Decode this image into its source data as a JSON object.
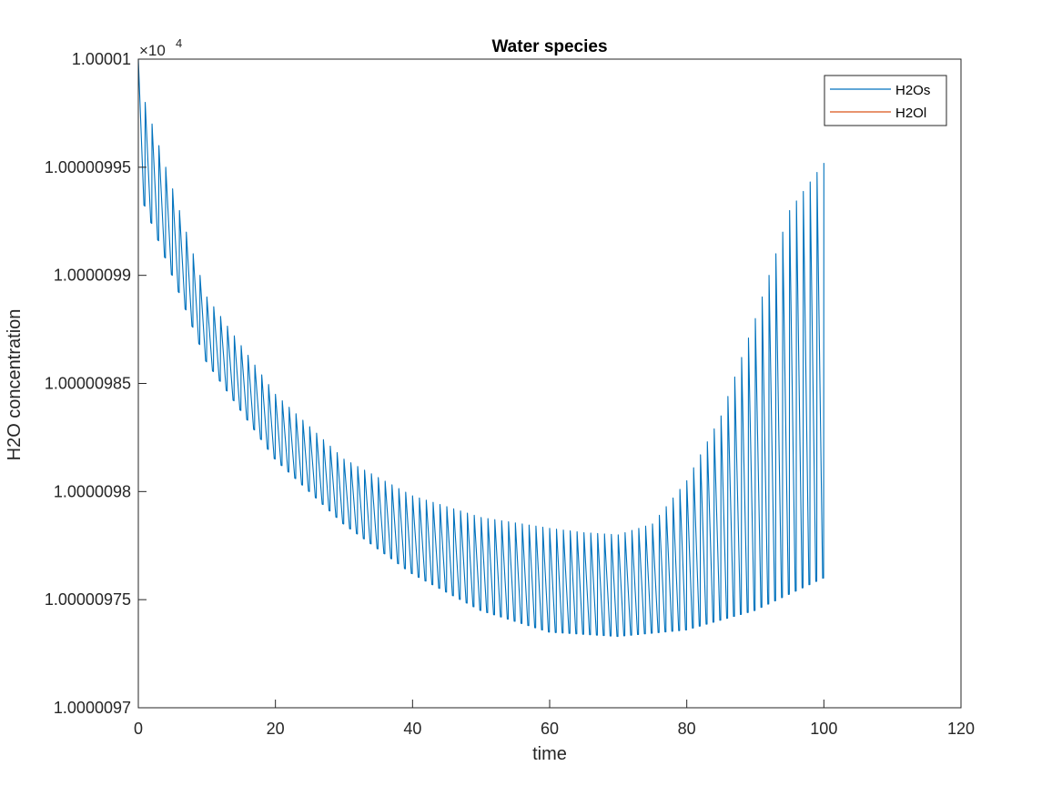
{
  "chart_data": {
    "type": "line",
    "title": "Water species",
    "xlabel": "time",
    "ylabel": "H2O concentration",
    "exponent_base": "×10",
    "exponent_power": "4",
    "xlim": [
      0,
      120
    ],
    "ylim": [
      1.0000097,
      1.00001
    ],
    "x_ticks": [
      0,
      20,
      40,
      60,
      80,
      100,
      120
    ],
    "x_tick_labels": [
      "0",
      "20",
      "40",
      "60",
      "80",
      "100",
      "120"
    ],
    "y_ticks": [
      1.0000097,
      1.00000975,
      1.0000098,
      1.00000985,
      1.0000099,
      1.00000995,
      1.00001
    ],
    "y_tick_labels": [
      "1.0000097",
      "1.00000975",
      "1.0000098",
      "1.00000985",
      "1.0000099",
      "1.00000995",
      "1.00001"
    ],
    "grid": false,
    "legend_position": "top-right",
    "oscillation_period": 1.0,
    "series": [
      {
        "name": "H2Os",
        "color": "#0072bd",
        "kind": "sawtooth",
        "x_range": [
          0,
          100
        ],
        "trough_x": [
          0,
          10,
          20,
          30,
          40,
          50,
          60,
          70,
          80,
          90,
          100
        ],
        "trough_y": [
          1.00000994,
          1.00000986,
          1.000009815,
          1.000009785,
          1.000009762,
          1.000009745,
          1.000009735,
          1.000009733,
          1.000009736,
          1.000009745,
          1.00000976
        ],
        "peak_x": [
          0,
          1,
          3,
          5,
          10,
          20,
          30,
          40,
          50,
          60,
          65,
          70,
          75,
          80,
          85,
          90,
          95,
          100
        ],
        "peak_y": [
          1.00001,
          1.00000998,
          1.00000996,
          1.00000994,
          1.00000989,
          1.000009845,
          1.000009815,
          1.000009798,
          1.000009788,
          1.000009783,
          1.000009781,
          1.00000978,
          1.000009785,
          1.000009805,
          1.000009835,
          1.00000988,
          1.00000993,
          1.000009952
        ]
      },
      {
        "name": "H2Ol",
        "color": "#d95319",
        "kind": "line",
        "x": [
          0,
          100
        ],
        "y": [
          1.00001,
          1.00001
        ]
      }
    ]
  }
}
